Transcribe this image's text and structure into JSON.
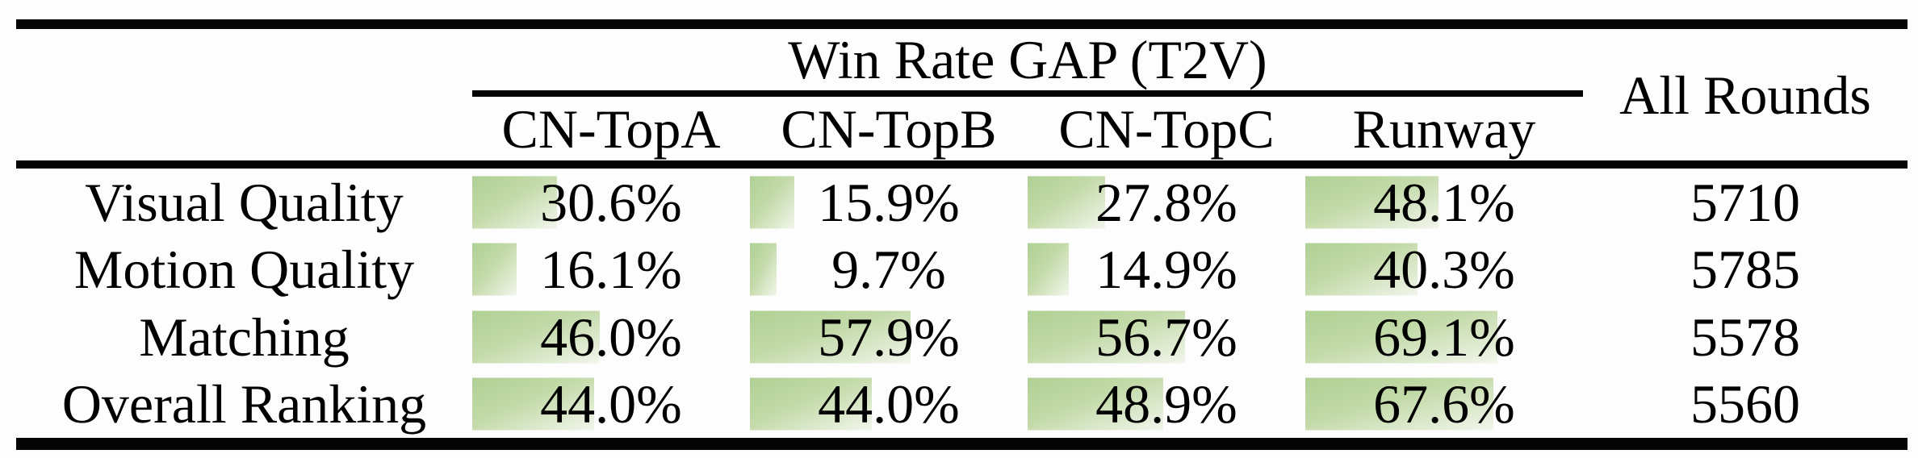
{
  "table": {
    "group_header": "Win Rate GAP (T2V)",
    "all_rounds_header": "All Rounds",
    "columns": [
      "CN-TopA",
      "CN-TopB",
      "CN-TopC",
      "Runway"
    ],
    "rows": [
      {
        "label": "Visual Quality",
        "cells": [
          {
            "display": "30.6%",
            "value": 30.6
          },
          {
            "display": "15.9%",
            "value": 15.9
          },
          {
            "display": "27.8%",
            "value": 27.8
          },
          {
            "display": "48.1%",
            "value": 48.1
          }
        ],
        "all_rounds": "5710"
      },
      {
        "label": "Motion Quality",
        "cells": [
          {
            "display": "16.1%",
            "value": 16.1
          },
          {
            "display": "9.7%",
            "value": 9.7
          },
          {
            "display": "14.9%",
            "value": 14.9
          },
          {
            "display": "40.3%",
            "value": 40.3
          }
        ],
        "all_rounds": "5785"
      },
      {
        "label": "Matching",
        "cells": [
          {
            "display": "46.0%",
            "value": 46.0
          },
          {
            "display": "57.9%",
            "value": 57.9
          },
          {
            "display": "56.7%",
            "value": 56.7
          },
          {
            "display": "69.1%",
            "value": 69.1
          }
        ],
        "all_rounds": "5578"
      },
      {
        "label": "Overall Ranking",
        "cells": [
          {
            "display": "44.0%",
            "value": 44.0
          },
          {
            "display": "44.0%",
            "value": 44.0
          },
          {
            "display": "48.9%",
            "value": 48.9
          },
          {
            "display": "67.6%",
            "value": 67.6
          }
        ],
        "all_rounds": "5560"
      }
    ],
    "colors": {
      "bar_start": "#afd094",
      "bar_mid": "#c3daa9",
      "bar_end": "#f2f6ec",
      "rule": "#050505"
    }
  },
  "chart_data": {
    "type": "table",
    "title": "Win Rate GAP (T2V)",
    "categories": [
      "Visual Quality",
      "Motion Quality",
      "Matching",
      "Overall Ranking"
    ],
    "series": [
      {
        "name": "CN-TopA",
        "unit": "%",
        "values": [
          30.6,
          16.1,
          46.0,
          44.0
        ]
      },
      {
        "name": "CN-TopB",
        "unit": "%",
        "values": [
          15.9,
          9.7,
          57.9,
          44.0
        ]
      },
      {
        "name": "CN-TopC",
        "unit": "%",
        "values": [
          27.8,
          14.9,
          56.7,
          48.9
        ]
      },
      {
        "name": "Runway",
        "unit": "%",
        "values": [
          48.1,
          40.3,
          69.1,
          67.6
        ]
      },
      {
        "name": "All Rounds",
        "unit": "rounds",
        "values": [
          5710,
          5785,
          5578,
          5560
        ]
      }
    ],
    "layout": {
      "bars": "horizontal-data-bars",
      "bar_scale_max_percent": 100,
      "legend": "none",
      "grid": "off"
    }
  }
}
